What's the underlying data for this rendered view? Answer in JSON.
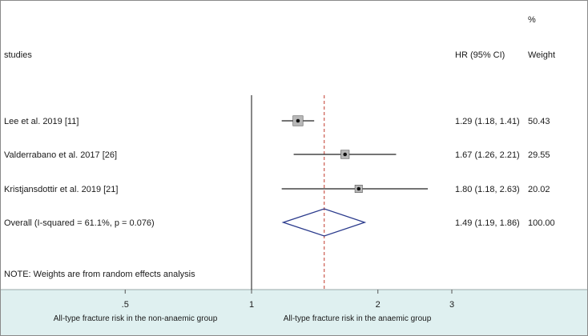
{
  "chart_data": {
    "type": "forest",
    "title": "",
    "columns": {
      "label": "studies",
      "effect": "HR (95% CI)",
      "weight_top": "%",
      "weight": "Weight"
    },
    "studies": [
      {
        "label": "Lee et al. 2019 [11]",
        "hr": 1.29,
        "lower": 1.18,
        "upper": 1.41,
        "ci_text": "1.29 (1.18, 1.41)",
        "weight": "50.43"
      },
      {
        "label": "Valderrabano et al. 2017 [26]",
        "hr": 1.67,
        "lower": 1.26,
        "upper": 2.21,
        "ci_text": "1.67 (1.26, 2.21)",
        "weight": "29.55"
      },
      {
        "label": "Kristjansdottir et al. 2019 [21]",
        "hr": 1.8,
        "lower": 1.18,
        "upper": 2.63,
        "ci_text": "1.80 (1.18, 2.63)",
        "weight": "20.02"
      }
    ],
    "overall": {
      "label": "Overall  (I-squared = 61.1%, p = 0.076)",
      "hr": 1.49,
      "lower": 1.19,
      "upper": 1.86,
      "ci_text": "1.49 (1.19, 1.86)",
      "weight": "100.00"
    },
    "note": "NOTE: Weights are from random effects analysis",
    "x_axis": {
      "scale": "log",
      "xlim": [
        0.386,
        3.0
      ],
      "ticks": [
        0.5,
        1,
        2,
        3
      ],
      "tick_labels": [
        ".5",
        "1",
        "2",
        "3"
      ],
      "reference_line": 1
    },
    "x_labels": {
      "left": "All-type fracture risk in the non-anaemic group",
      "right": "All-type fracture risk in the anaemic group"
    },
    "colors": {
      "axis_band": "#dff0f0",
      "diamond": "#2a3a8c",
      "overall_line": "#c0392b",
      "marks": "#222222"
    }
  }
}
